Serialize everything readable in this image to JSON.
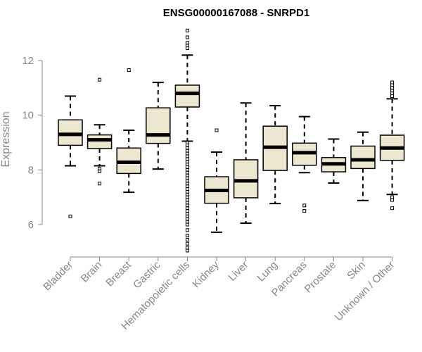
{
  "chart_data": {
    "type": "box",
    "title": "ENSG00000167088 - SNRPD1",
    "ylabel": "Expression",
    "xlabel": "",
    "ylim": [
      4.8,
      13.2
    ],
    "yticks": [
      6,
      8,
      10,
      12
    ],
    "box_fill": "#ede6d0",
    "categories": [
      "Bladder",
      "Brain",
      "Breast",
      "Gastric",
      "Hematopoietic cells",
      "Kidney",
      "Liver",
      "Lung",
      "Pancreas",
      "Prostate",
      "Skin",
      "Unknown / Other"
    ],
    "boxes": [
      {
        "whisker_low": 8.15,
        "q1": 8.9,
        "median": 9.3,
        "q3": 9.83,
        "whisker_high": 10.7,
        "outliers": [
          6.3
        ]
      },
      {
        "whisker_low": 8.15,
        "q1": 8.78,
        "median": 9.1,
        "q3": 9.28,
        "whisker_high": 9.65,
        "outliers": [
          11.3,
          8.05,
          7.95,
          7.5
        ]
      },
      {
        "whisker_low": 7.18,
        "q1": 7.87,
        "median": 8.28,
        "q3": 8.8,
        "whisker_high": 9.45,
        "outliers": [
          11.65
        ]
      },
      {
        "whisker_low": 8.03,
        "q1": 8.97,
        "median": 9.28,
        "q3": 10.27,
        "whisker_high": 11.2,
        "outliers": []
      },
      {
        "whisker_low": 9.05,
        "q1": 10.3,
        "median": 10.8,
        "q3": 11.1,
        "whisker_high": 12.2,
        "outliers": [
          13.1,
          12.85,
          12.65,
          12.55,
          12.45,
          9.0,
          8.9,
          8.8,
          8.7,
          8.6,
          8.5,
          8.4,
          8.3,
          8.2,
          8.1,
          8.0,
          7.9,
          7.8,
          7.7,
          7.6,
          7.5,
          7.4,
          7.3,
          7.2,
          7.1,
          7.0,
          6.9,
          6.8,
          6.7,
          6.6,
          6.5,
          6.4,
          6.3,
          6.2,
          6.1,
          6.0,
          5.8,
          5.6,
          5.45,
          5.3,
          5.15,
          5.05
        ]
      },
      {
        "whisker_low": 5.72,
        "q1": 6.78,
        "median": 7.25,
        "q3": 7.75,
        "whisker_high": 8.65,
        "outliers": [
          9.45
        ]
      },
      {
        "whisker_low": 6.05,
        "q1": 6.98,
        "median": 7.6,
        "q3": 8.37,
        "whisker_high": 10.45,
        "outliers": []
      },
      {
        "whisker_low": 6.77,
        "q1": 7.98,
        "median": 8.83,
        "q3": 9.6,
        "whisker_high": 10.35,
        "outliers": []
      },
      {
        "whisker_low": 7.9,
        "q1": 8.17,
        "median": 8.63,
        "q3": 8.98,
        "whisker_high": 9.95,
        "outliers": [
          6.7,
          6.5
        ]
      },
      {
        "whisker_low": 7.52,
        "q1": 7.93,
        "median": 8.22,
        "q3": 8.45,
        "whisker_high": 9.13,
        "outliers": []
      },
      {
        "whisker_low": 6.88,
        "q1": 8.05,
        "median": 8.37,
        "q3": 8.87,
        "whisker_high": 9.38,
        "outliers": []
      },
      {
        "whisker_low": 7.1,
        "q1": 8.35,
        "median": 8.8,
        "q3": 9.27,
        "whisker_high": 10.6,
        "outliers": [
          11.2,
          11.1,
          11.0,
          10.9,
          10.8,
          10.7,
          7.0,
          6.9,
          6.6
        ]
      }
    ]
  }
}
